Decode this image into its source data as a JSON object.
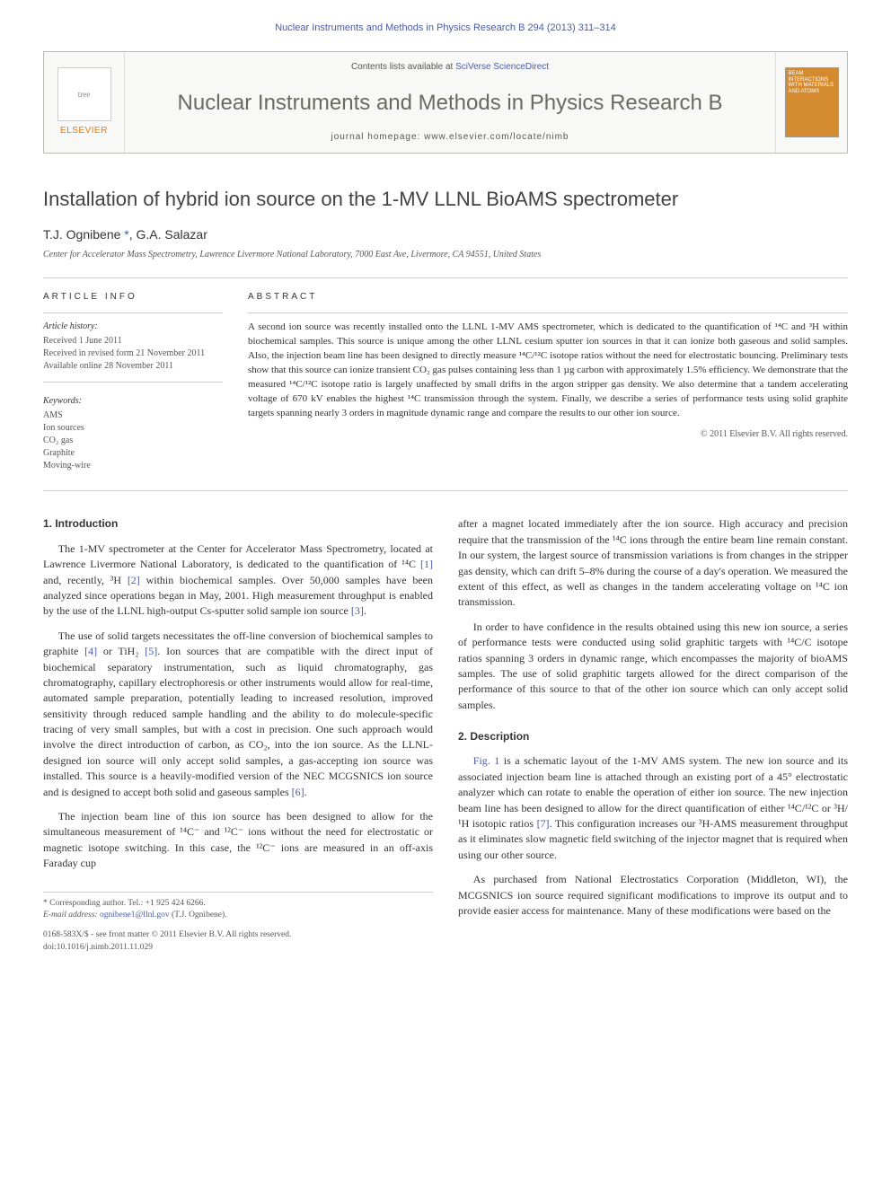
{
  "running_head": "Nuclear Instruments and Methods in Physics Research B 294 (2013) 311–314",
  "header": {
    "elsevier_label": "ELSEVIER",
    "contents_prefix": "Contents lists available at ",
    "contents_link": "SciVerse ScienceDirect",
    "journal_name": "Nuclear Instruments and Methods in Physics Research B",
    "homepage_prefix": "journal homepage: ",
    "homepage_url": "www.elsevier.com/locate/nimb",
    "cover_text": "BEAM INTERACTIONS WITH MATERIALS AND ATOMS",
    "tree_placeholder": "tree"
  },
  "colors": {
    "link": "#4a5aa8",
    "elsevier_orange": "#e67817",
    "journal_grey": "#6a6a60",
    "cover_bg": "#d48a2f",
    "text": "#333333",
    "muted": "#555555",
    "rule": "#cccccc",
    "bg": "#ffffff"
  },
  "title": "Installation of hybrid ion source on the 1-MV LLNL BioAMS spectrometer",
  "authors_html": "T.J. Ognibene *, G.A. Salazar",
  "author1": "T.J. Ognibene",
  "author_corr_marker": " *",
  "author_sep": ", ",
  "author2": "G.A. Salazar",
  "affiliation": "Center for Accelerator Mass Spectrometry, Lawrence Livermore National Laboratory, 7000 East Ave, Livermore, CA 94551, United States",
  "article_info": {
    "heading": "ARTICLE INFO",
    "history_head": "Article history:",
    "received": "Received 1 June 2011",
    "revised": "Received in revised form 21 November 2011",
    "online": "Available online 28 November 2011",
    "keywords_head": "Keywords:",
    "keywords": [
      "AMS",
      "Ion sources",
      "CO₂ gas",
      "Graphite",
      "Moving-wire"
    ]
  },
  "abstract": {
    "heading": "ABSTRACT",
    "text": "A second ion source was recently installed onto the LLNL 1-MV AMS spectrometer, which is dedicated to the quantification of ¹⁴C and ³H within biochemical samples. This source is unique among the other LLNL cesium sputter ion sources in that it can ionize both gaseous and solid samples. Also, the injection beam line has been designed to directly measure ¹⁴C/¹²C isotope ratios without the need for electrostatic bouncing. Preliminary tests show that this source can ionize transient CO₂ gas pulses containing less than 1 µg carbon with approximately 1.5% efficiency. We demonstrate that the measured ¹⁴C/¹²C isotope ratio is largely unaffected by small drifts in the argon stripper gas density. We also determine that a tandem accelerating voltage of 670 kV enables the highest ¹⁴C transmission through the system. Finally, we describe a series of performance tests using solid graphite targets spanning nearly 3 orders in magnitude dynamic range and compare the results to our other ion source.",
    "copyright": "© 2011 Elsevier B.V. All rights reserved."
  },
  "sections": {
    "intro_head": "1. Introduction",
    "intro_p1": "The 1-MV spectrometer at the Center for Accelerator Mass Spectrometry, located at Lawrence Livermore National Laboratory, is dedicated to the quantification of ¹⁴C [1] and, recently, ³H [2] within biochemical samples. Over 50,000 samples have been analyzed since operations began in May, 2001. High measurement throughput is enabled by the use of the LLNL high-output Cs-sputter solid sample ion source [3].",
    "intro_p2": "The use of solid targets necessitates the off-line conversion of biochemical samples to graphite [4] or TiH₂ [5]. Ion sources that are compatible with the direct input of biochemical separatory instrumentation, such as liquid chromatography, gas chromatography, capillary electrophoresis or other instruments would allow for real-time, automated sample preparation, potentially leading to increased resolution, improved sensitivity through reduced sample handling and the ability to do molecule-specific tracing of very small samples, but with a cost in precision. One such approach would involve the direct introduction of carbon, as CO₂, into the ion source. As the LLNL-designed ion source will only accept solid samples, a gas-accepting ion source was installed. This source is a heavily-modified version of the NEC MCGSNICS ion source and is designed to accept both solid and gaseous samples [6].",
    "intro_p3": "The injection beam line of this ion source has been designed to allow for the simultaneous measurement of ¹⁴C⁻ and ¹²C⁻ ions without the need for electrostatic or magnetic isotope switching. In this case, the ¹²C⁻ ions are measured in an off-axis Faraday cup",
    "intro_p4": "after a magnet located immediately after the ion source. High accuracy and precision require that the transmission of the ¹⁴C ions through the entire beam line remain constant. In our system, the largest source of transmission variations is from changes in the stripper gas density, which can drift 5–8% during the course of a day's operation. We measured the extent of this effect, as well as changes in the tandem accelerating voltage on ¹⁴C ion transmission.",
    "intro_p5": "In order to have confidence in the results obtained using this new ion source, a series of performance tests were conducted using solid graphitic targets with ¹⁴C/C isotope ratios spanning 3 orders in dynamic range, which encompasses the majority of bioAMS samples. The use of solid graphitic targets allowed for the direct comparison of the performance of this source to that of the other ion source which can only accept solid samples.",
    "desc_head": "2. Description",
    "desc_p1": "Fig. 1 is a schematic layout of the 1-MV AMS system. The new ion source and its associated injection beam line is attached through an existing port of a 45° electrostatic analyzer which can rotate to enable the operation of either ion source. The new injection beam line has been designed to allow for the direct quantification of either ¹⁴C/¹²C or ³H/¹H isotopic ratios [7]. This configuration increases our ³H-AMS measurement throughput as it eliminates slow magnetic field switching of the injector magnet that is required when using our other source.",
    "desc_p2": "As purchased from National Electrostatics Corporation (Middleton, WI), the MCGSNICS ion source required significant modifications to improve its output and to provide easier access for maintenance. Many of these modifications were based on the"
  },
  "footnote": {
    "corr": "* Corresponding author. Tel.: +1 925 424 6266.",
    "email_label": "E-mail address: ",
    "email": "ognibene1@llnl.gov",
    "email_suffix": " (T.J. Ognibene)."
  },
  "footer": {
    "issn": "0168-583X/$ - see front matter © 2011 Elsevier B.V. All rights reserved.",
    "doi": "doi:10.1016/j.nimb.2011.11.029"
  }
}
